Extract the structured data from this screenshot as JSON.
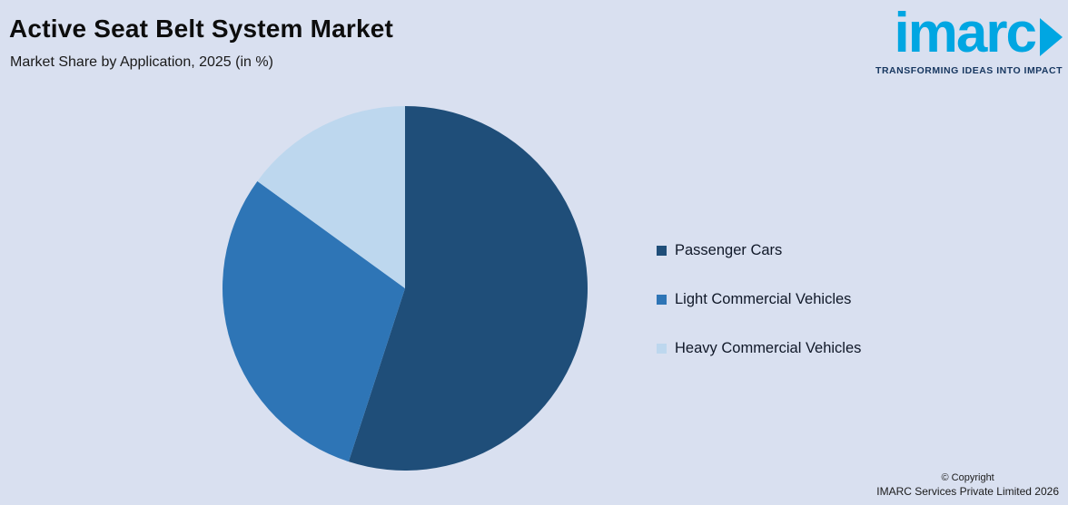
{
  "header": {
    "title": "Active Seat Belt System Market",
    "subtitle": "Market Share by Application, 2025 (in %)"
  },
  "logo": {
    "text": "imarc",
    "tagline": "TRANSFORMING IDEAS INTO IMPACT",
    "blue": "#00a6e2",
    "navy": "#16365f"
  },
  "chart_data": {
    "type": "pie",
    "title": "Active Seat Belt System Market",
    "subtitle": "Market Share by Application, 2025 (in %)",
    "categories": [
      "Passenger Cars",
      "Light Commercial Vehicles",
      "Heavy Commercial Vehicles"
    ],
    "values": [
      55,
      30,
      15
    ],
    "unit": "%",
    "colors": [
      "#1f4e79",
      "#2e75b6",
      "#bdd7ee"
    ],
    "start_angle_deg": -90,
    "direction": "clockwise",
    "legend_position": "right",
    "data_labels": false
  },
  "legend": {
    "items": [
      {
        "label": "Passenger Cars",
        "color": "#1f4e79"
      },
      {
        "label": "Light Commercial Vehicles",
        "color": "#2e75b6"
      },
      {
        "label": "Heavy Commercial Vehicles",
        "color": "#bdd7ee"
      }
    ]
  },
  "footer": {
    "copyright_line1": "© Copyright",
    "copyright_line2": "IMARC Services Private Limited 2026"
  },
  "colors": {
    "background": "#d9e0f0"
  }
}
